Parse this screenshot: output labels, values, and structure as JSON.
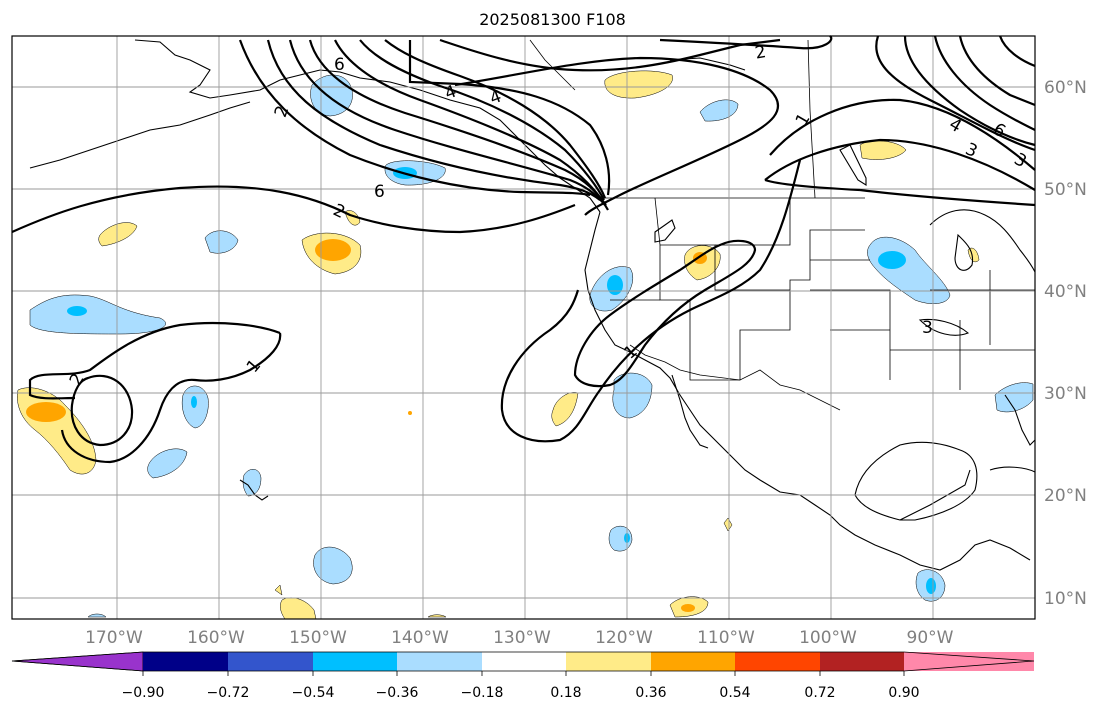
{
  "title": "2025081300 F108",
  "lon_labels": [
    "170°W",
    "160°W",
    "150°W",
    "140°W",
    "130°W",
    "120°W",
    "110°W",
    "100°W",
    "90°W"
  ],
  "lat_labels": [
    "60°N",
    "50°N",
    "40°N",
    "30°N",
    "20°N",
    "10°N"
  ],
  "colorbar": {
    "colors": [
      "#9933cc",
      "#000088",
      "#3355cc",
      "#00bfff",
      "#aaddff",
      "#ffffff",
      "#ffeb88",
      "#ffa500",
      "#ff4500",
      "#b22222",
      "#ff88aa"
    ],
    "tick_labels": [
      "−0.90",
      "−0.72",
      "−0.54",
      "−0.36",
      "−0.18",
      "0.18",
      "0.36",
      "0.54",
      "0.72",
      "0.90"
    ]
  },
  "contour_labels": [
    "6",
    "2",
    "4",
    "6",
    "2",
    "4",
    "3",
    "6",
    "4",
    "3",
    "2",
    "1",
    "2",
    "1",
    "1",
    "3"
  ],
  "colors": {
    "light_blue": "#aaddff",
    "blue": "#00bfff",
    "light_yellow": "#ffeb88",
    "orange": "#ffa500",
    "grid": "#9a9a9a",
    "label_gray": "#808080"
  }
}
